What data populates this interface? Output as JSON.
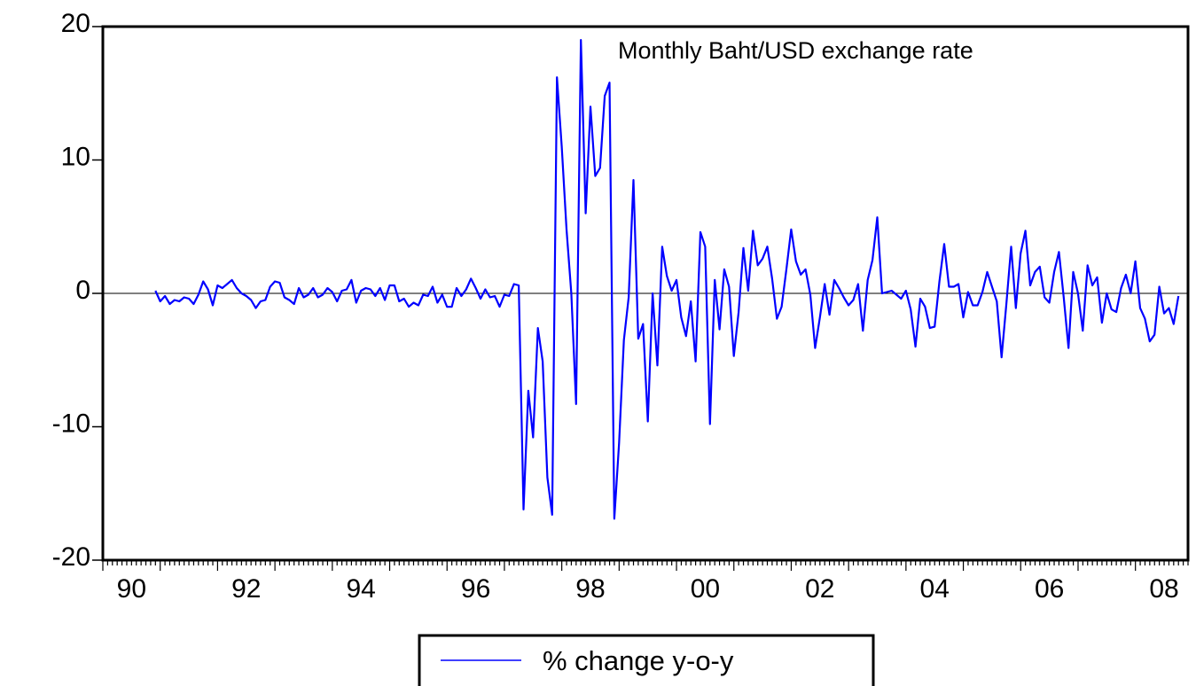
{
  "chart_data": {
    "type": "line",
    "title": "Monthly Baht/USD exchange rate",
    "xlabel": "",
    "ylabel": "",
    "xlim": [
      1990.0,
      2008.9167
    ],
    "ylim": [
      -20,
      20
    ],
    "grid": false,
    "zero_line": true,
    "legend_position": "bottom-center",
    "y_ticks": [
      -20,
      -10,
      0,
      10,
      20
    ],
    "y_tick_labels": [
      "-20",
      "-10",
      "0",
      "10",
      "20"
    ],
    "x_ticks": [
      1990,
      1992,
      1994,
      1996,
      1998,
      2000,
      2002,
      2004,
      2006,
      2008
    ],
    "x_tick_labels": [
      "90",
      "92",
      "94",
      "96",
      "98",
      "00",
      "02",
      "04",
      "06",
      "08"
    ],
    "x_start": 1990.9167,
    "x_step": 0.08333,
    "series": [
      {
        "name": "% change y-o-y",
        "color": "#0000ff",
        "values": [
          0.2,
          -0.6,
          -0.2,
          -0.8,
          -0.5,
          -0.6,
          -0.3,
          -0.4,
          -0.8,
          -0.1,
          0.9,
          0.3,
          -0.9,
          0.6,
          0.4,
          0.7,
          1.0,
          0.4,
          0.0,
          -0.2,
          -0.5,
          -1.1,
          -0.6,
          -0.5,
          0.5,
          0.9,
          0.8,
          -0.3,
          -0.5,
          -0.8,
          0.4,
          -0.3,
          -0.1,
          0.4,
          -0.3,
          -0.1,
          0.4,
          0.1,
          -0.6,
          0.2,
          0.3,
          1.0,
          -0.7,
          0.2,
          0.4,
          0.3,
          -0.2,
          0.4,
          -0.5,
          0.6,
          0.6,
          -0.6,
          -0.4,
          -1.0,
          -0.7,
          -0.9,
          -0.1,
          -0.2,
          0.5,
          -0.7,
          -0.1,
          -1.0,
          -1.0,
          0.4,
          -0.2,
          0.3,
          1.1,
          0.4,
          -0.4,
          0.3,
          -0.3,
          -0.2,
          -1.0,
          -0.1,
          -0.2,
          0.7,
          0.6,
          -16.2,
          -7.3,
          -10.8,
          -2.6,
          -5.1,
          -13.8,
          -16.6,
          16.2,
          11.0,
          4.8,
          0.0,
          -8.3,
          19.0,
          6.0,
          14.0,
          8.8,
          9.4,
          14.8,
          15.8,
          -16.9,
          -11.2,
          -3.5,
          -0.3,
          8.5,
          -3.4,
          -2.3,
          -9.6,
          0.0,
          -5.4,
          3.5,
          1.3,
          0.2,
          1.0,
          -1.8,
          -3.2,
          -0.6,
          -5.1,
          4.6,
          3.5,
          -9.8,
          1.0,
          -2.7,
          1.8,
          0.5,
          -4.7,
          -1.4,
          3.4,
          0.2,
          4.7,
          2.1,
          2.6,
          3.5,
          1.1,
          -1.9,
          -1.0,
          1.8,
          4.8,
          2.4,
          1.4,
          1.8,
          -0.1,
          -4.1,
          -1.8,
          0.7,
          -1.6,
          1.0,
          0.4,
          -0.3,
          -0.9,
          -0.5,
          0.7,
          -2.8,
          1.0,
          2.5,
          5.7,
          0.0,
          0.1,
          0.2,
          -0.1,
          -0.4,
          0.2,
          -1.2,
          -4.0,
          -0.4,
          -1.0,
          -2.6,
          -2.5,
          0.9,
          3.7,
          0.5,
          0.5,
          0.7,
          -1.8,
          0.1,
          -0.9,
          -0.9,
          0.1,
          1.6,
          0.5,
          -0.6,
          -4.8,
          -0.8,
          3.5,
          -1.1,
          3.0,
          4.7,
          0.6,
          1.6,
          2.0,
          -0.3,
          -0.7,
          1.6,
          3.1,
          -0.3,
          -4.1,
          1.6,
          0.0,
          -2.8,
          2.1,
          0.6,
          1.2,
          -2.2,
          0.0,
          -1.2,
          -1.4,
          0.4,
          1.4,
          0.0,
          2.4,
          -1.1,
          -1.9,
          -3.6,
          -3.1,
          0.5,
          -1.5,
          -1.1,
          -2.3,
          -0.2
        ]
      }
    ]
  }
}
